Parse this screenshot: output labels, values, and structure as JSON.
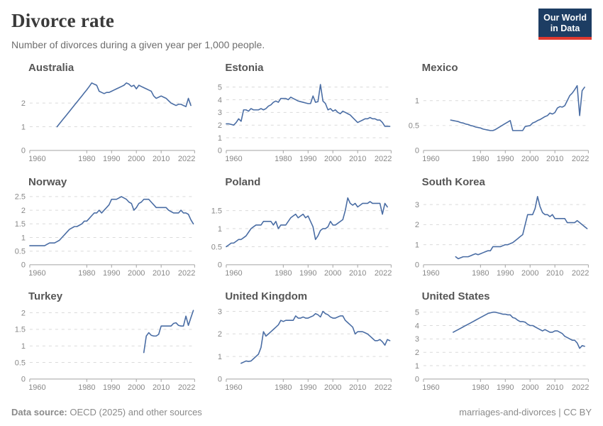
{
  "header": {
    "title": "Divorce rate",
    "subtitle": "Number of divorces during a given year per 1,000 people."
  },
  "logo": {
    "line1": "Our World",
    "line2": "in Data",
    "bg_color": "#1d3d63",
    "bar_color": "#e0392f"
  },
  "footer": {
    "source_label": "Data source:",
    "source_text": "OECD (2025) and other sources",
    "right_text": "marriages-and-divorces | CC BY"
  },
  "colors": {
    "line": "#4a6da4",
    "grid": "#dadada",
    "axis": "#a3a3a3",
    "tick_text": "#888888"
  },
  "chart_data": [
    {
      "type": "line",
      "title": "Australia",
      "unit": "divorces per 1,000 people",
      "xlim": [
        1957,
        2023.5
      ],
      "ylim": [
        0,
        3.05
      ],
      "x_ticks": [
        1960,
        1980,
        1990,
        2000,
        2010,
        2022
      ],
      "y_ticks": [
        0,
        1,
        2
      ],
      "x_start": 1968,
      "x_end": 2022,
      "x_interval": 1,
      "y": [
        1.0,
        1.13,
        1.26,
        1.39,
        1.52,
        1.65,
        1.78,
        1.91,
        2.04,
        2.17,
        2.3,
        2.43,
        2.56,
        2.7,
        2.85,
        2.8,
        2.75,
        2.5,
        2.45,
        2.4,
        2.45,
        2.45,
        2.5,
        2.55,
        2.6,
        2.65,
        2.7,
        2.75,
        2.85,
        2.8,
        2.7,
        2.75,
        2.6,
        2.75,
        2.7,
        2.65,
        2.6,
        2.55,
        2.5,
        2.3,
        2.2,
        2.25,
        2.3,
        2.25,
        2.2,
        2.1,
        2.0,
        1.95,
        1.9,
        1.95,
        1.95,
        1.9,
        1.85,
        2.2,
        1.9
      ]
    },
    {
      "type": "line",
      "title": "Estonia",
      "unit": "divorces per 1,000 people",
      "xlim": [
        1957,
        2023.5
      ],
      "ylim": [
        0,
        5.7
      ],
      "x_ticks": [
        1960,
        1980,
        1990,
        2000,
        2010,
        2022
      ],
      "y_ticks": [
        0,
        1,
        2,
        3,
        4,
        5
      ],
      "x_start": 1957,
      "x_end": 2023,
      "x_interval": 1,
      "y": [
        2.1,
        2.1,
        2.05,
        2.0,
        2.2,
        2.5,
        2.3,
        3.2,
        3.2,
        3.1,
        3.3,
        3.2,
        3.2,
        3.2,
        3.3,
        3.2,
        3.3,
        3.5,
        3.6,
        3.8,
        3.9,
        3.8,
        4.1,
        4.1,
        4.1,
        4.0,
        4.2,
        4.1,
        4.0,
        3.9,
        3.85,
        3.8,
        3.75,
        3.7,
        3.7,
        4.3,
        3.8,
        3.85,
        5.2,
        3.9,
        3.7,
        3.2,
        3.3,
        3.1,
        3.2,
        3.0,
        2.9,
        3.1,
        3.0,
        2.9,
        2.8,
        2.6,
        2.4,
        2.2,
        2.3,
        2.4,
        2.5,
        2.5,
        2.6,
        2.5,
        2.5,
        2.4,
        2.4,
        2.2,
        1.9,
        1.9,
        1.9
      ]
    },
    {
      "type": "line",
      "title": "Mexico",
      "unit": "divorces per 1,000 people",
      "xlim": [
        1957,
        2023.5
      ],
      "ylim": [
        0,
        1.45
      ],
      "x_ticks": [
        1960,
        1980,
        1990,
        2000,
        2010,
        2022
      ],
      "y_ticks": [
        0,
        0.5,
        1
      ],
      "x_start": 1968,
      "x_end": 2022,
      "x_interval": 1,
      "y": [
        0.61,
        0.6,
        0.59,
        0.58,
        0.56,
        0.55,
        0.53,
        0.52,
        0.5,
        0.49,
        0.47,
        0.46,
        0.45,
        0.43,
        0.42,
        0.41,
        0.4,
        0.4,
        0.42,
        0.45,
        0.48,
        0.51,
        0.54,
        0.57,
        0.6,
        0.4,
        0.4,
        0.4,
        0.4,
        0.4,
        0.48,
        0.49,
        0.5,
        0.55,
        0.57,
        0.6,
        0.62,
        0.65,
        0.68,
        0.7,
        0.75,
        0.73,
        0.76,
        0.85,
        0.88,
        0.87,
        0.9,
        1.0,
        1.1,
        1.15,
        1.22,
        1.3,
        0.7,
        1.2,
        1.27
      ]
    },
    {
      "type": "line",
      "title": "Norway",
      "unit": "divorces per 1,000 people",
      "xlim": [
        1957,
        2023.5
      ],
      "ylim": [
        0,
        2.65
      ],
      "x_ticks": [
        1960,
        1980,
        1990,
        2000,
        2010,
        2022
      ],
      "y_ticks": [
        0,
        0.5,
        1,
        1.5,
        2,
        2.5
      ],
      "x_start": 1957,
      "x_end": 2023,
      "x_interval": 1,
      "y": [
        0.7,
        0.7,
        0.7,
        0.7,
        0.7,
        0.7,
        0.7,
        0.75,
        0.8,
        0.8,
        0.8,
        0.85,
        0.9,
        1.0,
        1.1,
        1.2,
        1.3,
        1.35,
        1.4,
        1.4,
        1.45,
        1.5,
        1.6,
        1.6,
        1.7,
        1.8,
        1.9,
        1.9,
        2.0,
        1.9,
        2.0,
        2.1,
        2.2,
        2.4,
        2.4,
        2.4,
        2.45,
        2.5,
        2.45,
        2.4,
        2.3,
        2.25,
        2.0,
        2.1,
        2.25,
        2.3,
        2.4,
        2.4,
        2.4,
        2.3,
        2.2,
        2.1,
        2.1,
        2.1,
        2.1,
        2.1,
        2.0,
        1.95,
        1.9,
        1.9,
        1.9,
        2.0,
        1.9,
        1.9,
        1.85,
        1.65,
        1.5
      ]
    },
    {
      "type": "line",
      "title": "Poland",
      "unit": "divorces per 1,000 people",
      "xlim": [
        1957,
        2023.5
      ],
      "ylim": [
        0,
        2.0
      ],
      "x_ticks": [
        1960,
        1980,
        1990,
        2000,
        2010,
        2022
      ],
      "y_ticks": [
        0,
        0.5,
        1,
        1.5
      ],
      "x_start": 1957,
      "x_end": 2022,
      "x_interval": 1,
      "y": [
        0.5,
        0.55,
        0.6,
        0.6,
        0.65,
        0.7,
        0.7,
        0.75,
        0.8,
        0.9,
        1.0,
        1.05,
        1.1,
        1.1,
        1.1,
        1.2,
        1.2,
        1.2,
        1.2,
        1.1,
        1.2,
        1.0,
        1.1,
        1.1,
        1.1,
        1.2,
        1.3,
        1.35,
        1.4,
        1.3,
        1.35,
        1.4,
        1.3,
        1.35,
        1.2,
        1.05,
        0.7,
        0.8,
        0.95,
        1.0,
        1.0,
        1.05,
        1.2,
        1.1,
        1.1,
        1.15,
        1.2,
        1.25,
        1.5,
        1.85,
        1.7,
        1.65,
        1.7,
        1.6,
        1.65,
        1.7,
        1.7,
        1.7,
        1.75,
        1.7,
        1.7,
        1.7,
        1.7,
        1.4,
        1.7,
        1.6
      ]
    },
    {
      "type": "line",
      "title": "South Korea",
      "unit": "divorces per 1,000 people",
      "xlim": [
        1957,
        2023.5
      ],
      "ylim": [
        0,
        3.6
      ],
      "x_ticks": [
        1960,
        1980,
        1990,
        2000,
        2010,
        2022
      ],
      "y_ticks": [
        0,
        1,
        2,
        3
      ],
      "x_start": 1970,
      "x_end": 2023,
      "x_interval": 1,
      "y": [
        0.4,
        0.3,
        0.35,
        0.4,
        0.4,
        0.4,
        0.45,
        0.5,
        0.55,
        0.5,
        0.55,
        0.6,
        0.65,
        0.7,
        0.7,
        0.9,
        0.9,
        0.9,
        0.9,
        0.95,
        1.0,
        1.0,
        1.05,
        1.1,
        1.2,
        1.3,
        1.4,
        1.5,
        2.0,
        2.5,
        2.5,
        2.5,
        2.8,
        3.4,
        2.9,
        2.6,
        2.5,
        2.5,
        2.4,
        2.5,
        2.3,
        2.3,
        2.3,
        2.3,
        2.3,
        2.1,
        2.1,
        2.1,
        2.1,
        2.2,
        2.1,
        2.0,
        1.9,
        1.8
      ]
    },
    {
      "type": "line",
      "title": "Turkey",
      "unit": "divorces per 1,000 people",
      "xlim": [
        1957,
        2023.5
      ],
      "ylim": [
        0,
        2.18
      ],
      "x_ticks": [
        1960,
        1980,
        1990,
        2000,
        2010,
        2022
      ],
      "y_ticks": [
        0,
        0.5,
        1,
        1.5,
        2
      ],
      "x_start": 2003,
      "x_end": 2023,
      "x_interval": 1,
      "y": [
        0.8,
        1.3,
        1.4,
        1.32,
        1.3,
        1.3,
        1.35,
        1.6,
        1.6,
        1.6,
        1.6,
        1.6,
        1.68,
        1.7,
        1.62,
        1.6,
        1.6,
        1.9,
        1.62,
        1.85,
        2.07
      ]
    },
    {
      "type": "line",
      "title": "United Kingdom",
      "unit": "divorces per 1,000 people",
      "xlim": [
        1957,
        2023.5
      ],
      "ylim": [
        0,
        3.2
      ],
      "x_ticks": [
        1960,
        1980,
        1990,
        2000,
        2010,
        2022
      ],
      "y_ticks": [
        0,
        1,
        2,
        3
      ],
      "x_start": 1963,
      "x_end": 2023,
      "x_interval": 1,
      "y": [
        0.7,
        0.75,
        0.8,
        0.78,
        0.8,
        0.9,
        1.0,
        1.1,
        1.4,
        2.1,
        1.9,
        2.0,
        2.1,
        2.2,
        2.3,
        2.4,
        2.6,
        2.55,
        2.6,
        2.6,
        2.6,
        2.6,
        2.8,
        2.7,
        2.7,
        2.75,
        2.7,
        2.7,
        2.75,
        2.8,
        2.9,
        2.85,
        2.75,
        3.0,
        2.9,
        2.85,
        2.75,
        2.7,
        2.7,
        2.75,
        2.8,
        2.8,
        2.6,
        2.5,
        2.4,
        2.3,
        2.0,
        2.1,
        2.1,
        2.1,
        2.05,
        2.0,
        1.9,
        1.8,
        1.7,
        1.7,
        1.75,
        1.65,
        1.5,
        1.75,
        1.7
      ]
    },
    {
      "type": "line",
      "title": "United States",
      "unit": "divorces per 1,000 people",
      "xlim": [
        1957,
        2023.5
      ],
      "ylim": [
        0,
        5.4
      ],
      "x_ticks": [
        1960,
        1980,
        1990,
        2000,
        2010,
        2022
      ],
      "y_ticks": [
        0,
        1,
        2,
        3,
        4,
        5
      ],
      "x_start": 1969,
      "x_end": 2022,
      "x_interval": 1,
      "y": [
        3.5,
        3.6,
        3.7,
        3.8,
        3.9,
        4.0,
        4.1,
        4.2,
        4.3,
        4.4,
        4.5,
        4.6,
        4.7,
        4.8,
        4.9,
        4.95,
        5.0,
        5.0,
        4.95,
        4.9,
        4.85,
        4.85,
        4.8,
        4.8,
        4.6,
        4.55,
        4.4,
        4.3,
        4.3,
        4.25,
        4.1,
        4.0,
        4.0,
        3.9,
        3.8,
        3.7,
        3.6,
        3.7,
        3.6,
        3.5,
        3.5,
        3.6,
        3.6,
        3.5,
        3.4,
        3.2,
        3.1,
        3.0,
        2.9,
        2.9,
        2.7,
        2.3,
        2.5,
        2.45
      ]
    }
  ]
}
